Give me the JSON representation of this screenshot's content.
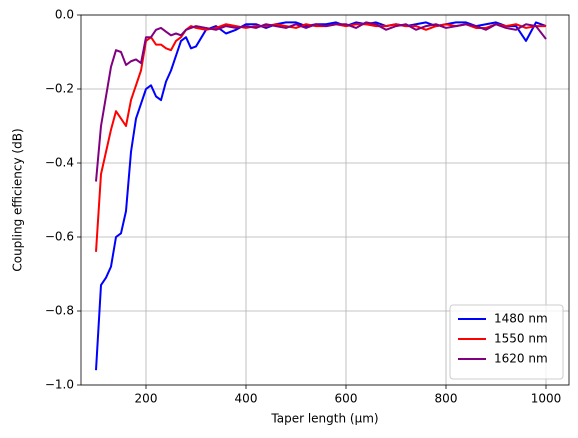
{
  "chart_data": {
    "type": "line",
    "x_label": "Taper length (μm)",
    "y_label": "Coupling efficiency (dB)",
    "x": [
      100,
      110,
      120,
      130,
      140,
      150,
      160,
      170,
      180,
      190,
      200,
      210,
      220,
      230,
      240,
      250,
      260,
      270,
      280,
      290,
      300,
      320,
      340,
      360,
      380,
      400,
      420,
      440,
      460,
      480,
      500,
      520,
      540,
      560,
      580,
      600,
      620,
      640,
      660,
      680,
      700,
      720,
      740,
      760,
      780,
      800,
      820,
      840,
      860,
      880,
      900,
      920,
      940,
      960,
      980,
      1000
    ],
    "series": [
      {
        "name": "1480 nm",
        "color": "#0000ff",
        "values": [
          -0.96,
          -0.73,
          -0.71,
          -0.68,
          -0.6,
          -0.59,
          -0.53,
          -0.37,
          -0.28,
          -0.24,
          -0.2,
          -0.19,
          -0.22,
          -0.23,
          -0.18,
          -0.15,
          -0.11,
          -0.07,
          -0.06,
          -0.09,
          -0.085,
          -0.04,
          -0.03,
          -0.05,
          -0.04,
          -0.025,
          -0.025,
          -0.035,
          -0.025,
          -0.02,
          -0.02,
          -0.03,
          -0.025,
          -0.025,
          -0.02,
          -0.03,
          -0.02,
          -0.025,
          -0.02,
          -0.03,
          -0.025,
          -0.03,
          -0.025,
          -0.02,
          -0.03,
          -0.025,
          -0.02,
          -0.02,
          -0.03,
          -0.025,
          -0.02,
          -0.03,
          -0.03,
          -0.07,
          -0.02,
          -0.03
        ]
      },
      {
        "name": "1550 nm",
        "color": "#ff0000",
        "values": [
          -0.64,
          -0.43,
          -0.37,
          -0.31,
          -0.26,
          -0.28,
          -0.3,
          -0.23,
          -0.19,
          -0.15,
          -0.07,
          -0.06,
          -0.08,
          -0.08,
          -0.09,
          -0.095,
          -0.07,
          -0.06,
          -0.04,
          -0.03,
          -0.035,
          -0.04,
          -0.035,
          -0.025,
          -0.03,
          -0.035,
          -0.03,
          -0.03,
          -0.025,
          -0.03,
          -0.035,
          -0.025,
          -0.03,
          -0.03,
          -0.025,
          -0.03,
          -0.025,
          -0.025,
          -0.03,
          -0.03,
          -0.025,
          -0.03,
          -0.03,
          -0.04,
          -0.03,
          -0.025,
          -0.03,
          -0.025,
          -0.035,
          -0.035,
          -0.025,
          -0.03,
          -0.025,
          -0.035,
          -0.03,
          -0.03
        ]
      },
      {
        "name": "1620 nm",
        "color": "#800080",
        "values": [
          -0.45,
          -0.3,
          -0.22,
          -0.14,
          -0.095,
          -0.1,
          -0.135,
          -0.125,
          -0.12,
          -0.13,
          -0.06,
          -0.06,
          -0.04,
          -0.035,
          -0.045,
          -0.055,
          -0.05,
          -0.055,
          -0.04,
          -0.035,
          -0.03,
          -0.035,
          -0.04,
          -0.03,
          -0.035,
          -0.03,
          -0.035,
          -0.025,
          -0.03,
          -0.035,
          -0.025,
          -0.035,
          -0.025,
          -0.03,
          -0.025,
          -0.025,
          -0.035,
          -0.02,
          -0.025,
          -0.04,
          -0.03,
          -0.025,
          -0.04,
          -0.03,
          -0.025,
          -0.035,
          -0.03,
          -0.025,
          -0.03,
          -0.04,
          -0.025,
          -0.035,
          -0.04,
          -0.025,
          -0.03,
          -0.065
        ]
      }
    ],
    "xlim": [
      70,
      1046
    ],
    "ylim": [
      -1,
      0
    ],
    "xticks": [
      200,
      400,
      600,
      800,
      1000
    ],
    "yticks": [
      {
        "value": -1,
        "label": "−1.0"
      },
      {
        "value": -0.8,
        "label": "−0.8"
      },
      {
        "value": -0.6,
        "label": "−0.6"
      },
      {
        "value": -0.4,
        "label": "−0.4"
      },
      {
        "value": -0.2,
        "label": "−0.2"
      },
      {
        "value": 0,
        "label": "0.0"
      }
    ],
    "grid": true,
    "legend": "lower right"
  }
}
